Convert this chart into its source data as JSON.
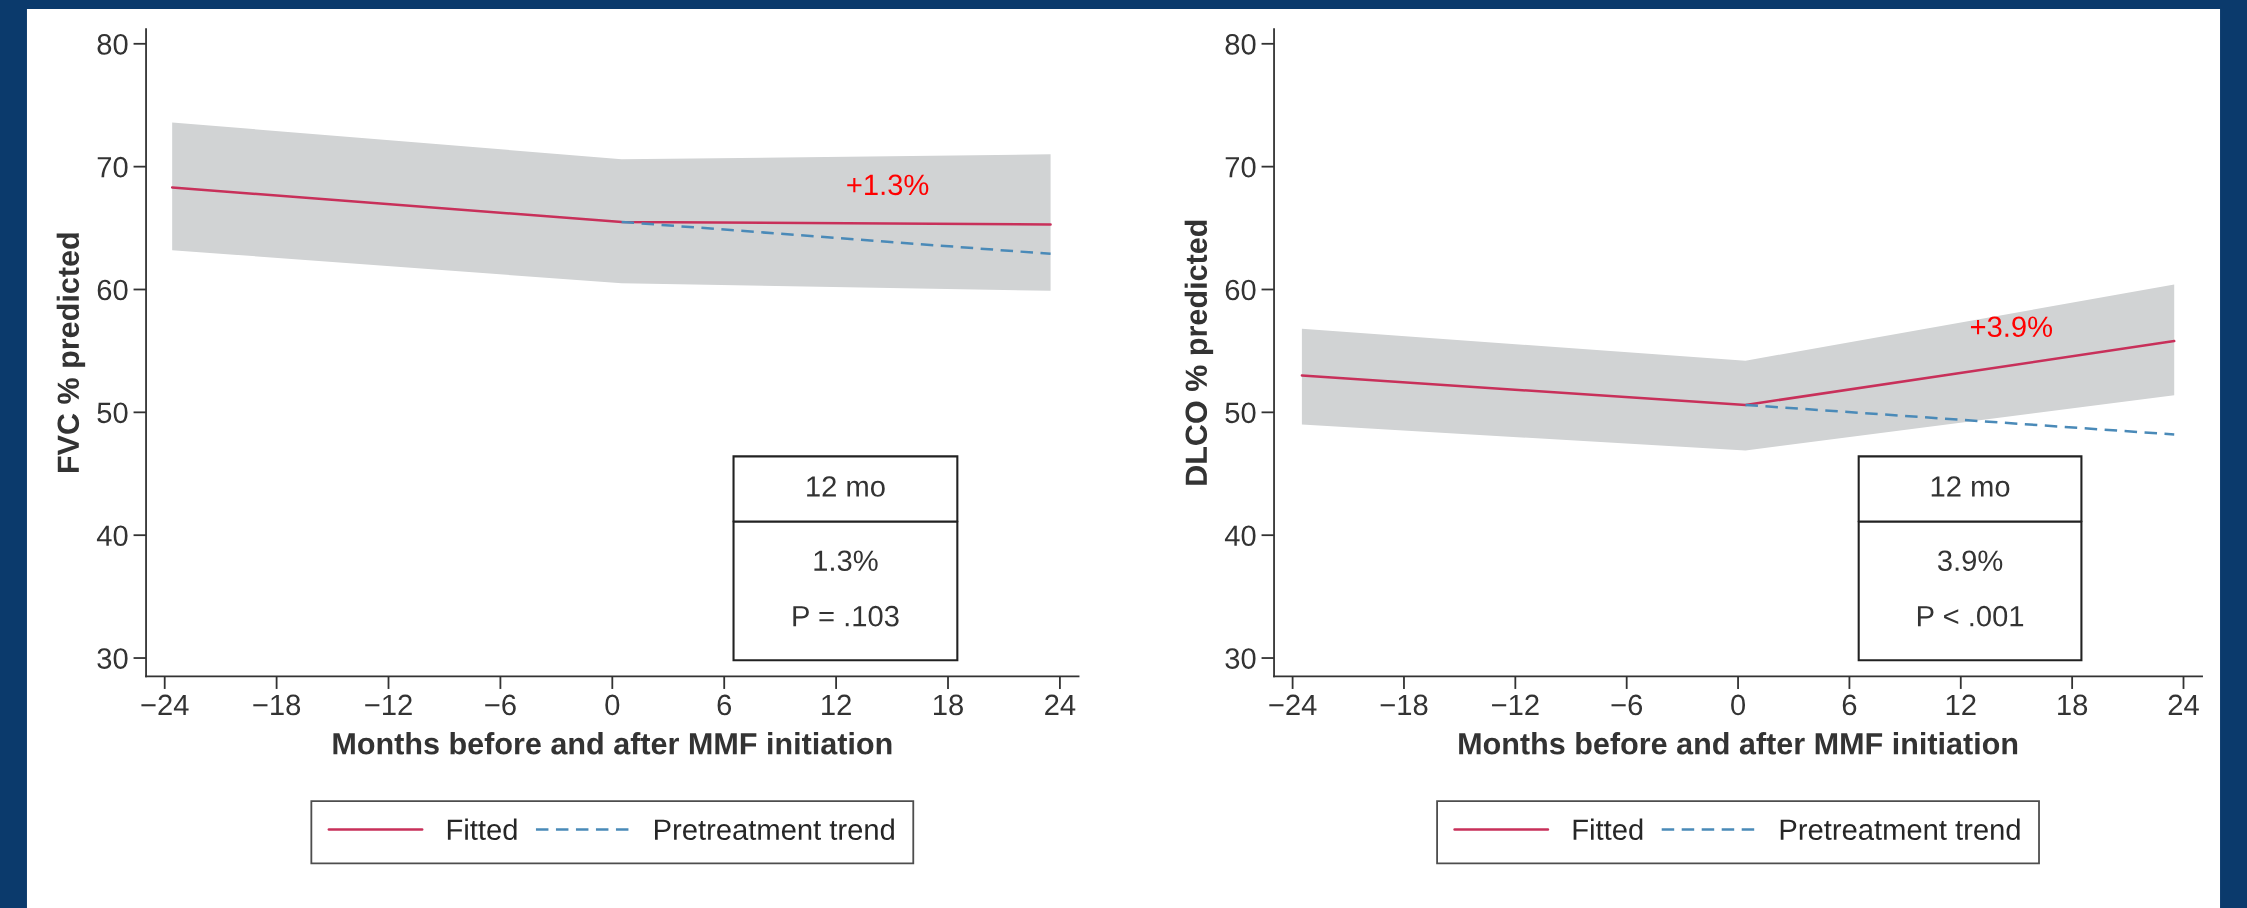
{
  "chart_data": [
    {
      "type": "line",
      "xlabel": "Months before and after MMF initiation",
      "ylabel": "FVC % predicted",
      "xlim": [
        -25,
        25
      ],
      "ylim": [
        28.5,
        81.2
      ],
      "xticks": [
        {
          "value": -24,
          "label": "−24"
        },
        {
          "value": -18,
          "label": "−18"
        },
        {
          "value": -12,
          "label": "−12"
        },
        {
          "value": -6,
          "label": "−6"
        },
        0,
        6,
        12,
        18,
        24
      ],
      "yticks": [
        30,
        40,
        50,
        60,
        70,
        80
      ],
      "grid": false,
      "legend": "bottom",
      "series": [
        {
          "name": "Fitted",
          "color": "#c8305a",
          "line_style": "solid",
          "x": [
            -23.6,
            0.5,
            23.5
          ],
          "values": [
            68.3,
            65.5,
            65.3
          ],
          "lower": [
            63.2,
            60.5,
            59.9
          ],
          "upper": [
            73.6,
            70.6,
            71.0
          ]
        },
        {
          "name": "Pretreatment trend",
          "color": "#4a8ab8",
          "line_style": "dashed",
          "x": [
            0.5,
            23.5
          ],
          "values": [
            65.5,
            62.9
          ]
        }
      ],
      "annotations": [
        "+1.3%",
        "12 mo",
        "1.3%",
        "P = .103"
      ]
    },
    {
      "type": "line",
      "xlabel": "Months before and after MMF initiation",
      "ylabel": "DLCO % predicted",
      "xlim": [
        -25,
        25
      ],
      "ylim": [
        28.5,
        81.2
      ],
      "xticks": [
        {
          "value": -24,
          "label": "−24"
        },
        {
          "value": -18,
          "label": "−18"
        },
        {
          "value": -12,
          "label": "−12"
        },
        {
          "value": -6,
          "label": "−6"
        },
        0,
        6,
        12,
        18,
        24
      ],
      "yticks": [
        30,
        40,
        50,
        60,
        70,
        80
      ],
      "grid": false,
      "legend": "bottom",
      "series": [
        {
          "name": "Fitted",
          "color": "#c8305a",
          "line_style": "solid",
          "x": [
            -23.5,
            0.4,
            23.5
          ],
          "values": [
            53.0,
            50.6,
            55.8
          ],
          "lower": [
            49.0,
            46.9,
            51.4
          ],
          "upper": [
            56.8,
            54.2,
            60.4
          ]
        },
        {
          "name": "Pretreatment trend",
          "color": "#4a8ab8",
          "line_style": "dashed",
          "x": [
            0.4,
            23.5
          ],
          "values": [
            50.6,
            48.2
          ]
        }
      ],
      "annotations": [
        "+3.9%",
        "12 mo",
        "3.9%",
        "P < .001"
      ]
    }
  ]
}
